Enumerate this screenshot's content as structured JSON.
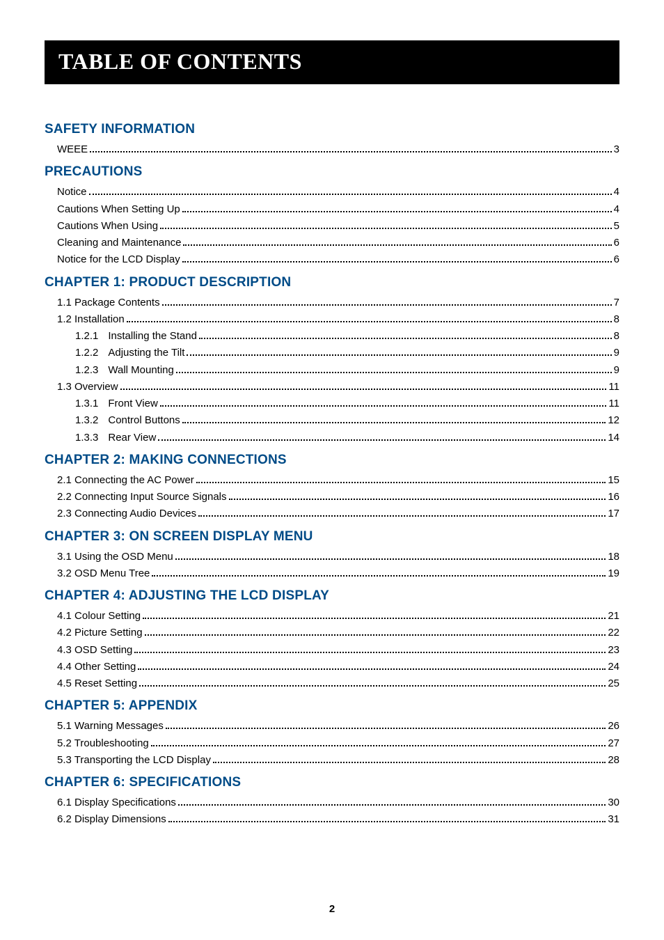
{
  "title_bar": "TABLE OF CONTENTS",
  "page_number": "2",
  "colors": {
    "heading": "#004b87",
    "bar_bg": "#000000",
    "bar_fg": "#ffffff",
    "text": "#000000",
    "page_bg": "#ffffff"
  },
  "fonts": {
    "title_family": "Georgia, 'Times New Roman', serif",
    "title_size_pt": 24,
    "heading_size_pt": 14,
    "body_family": "Arial, Helvetica, sans-serif",
    "body_size_pt": 11
  },
  "sections": [
    {
      "heading": "SAFETY INFORMATION",
      "entries": [
        {
          "level": 1,
          "num": "",
          "label": "WEEE",
          "page": "3"
        }
      ]
    },
    {
      "heading": "PRECAUTIONS",
      "entries": [
        {
          "level": 1,
          "num": "",
          "label": "Notice",
          "page": "4"
        },
        {
          "level": 1,
          "num": "",
          "label": "Cautions When Setting Up",
          "page": "4"
        },
        {
          "level": 1,
          "num": "",
          "label": "Cautions When Using",
          "page": "5"
        },
        {
          "level": 1,
          "num": "",
          "label": "Cleaning and Maintenance",
          "page": "6"
        },
        {
          "level": 1,
          "num": "",
          "label": "Notice for the LCD Display",
          "page": "6"
        }
      ]
    },
    {
      "heading": "CHAPTER 1: PRODUCT DESCRIPTION",
      "entries": [
        {
          "level": 1,
          "num": "",
          "label": "1.1 Package Contents",
          "page": "7"
        },
        {
          "level": 1,
          "num": "",
          "label": "1.2 Installation",
          "page": "8"
        },
        {
          "level": 2,
          "num": "1.2.1",
          "label": "Installing the Stand",
          "page": "8"
        },
        {
          "level": 2,
          "num": "1.2.2",
          "label": "Adjusting the Tilt",
          "page": "9"
        },
        {
          "level": 2,
          "num": "1.2.3",
          "label": "Wall Mounting",
          "page": "9"
        },
        {
          "level": 1,
          "num": "",
          "label": "1.3 Overview",
          "page": "11"
        },
        {
          "level": 2,
          "num": "1.3.1",
          "label": "Front View",
          "page": "11"
        },
        {
          "level": 2,
          "num": "1.3.2",
          "label": "Control Buttons",
          "page": "12"
        },
        {
          "level": 2,
          "num": "1.3.3",
          "label": "Rear View",
          "page": "14"
        }
      ]
    },
    {
      "heading": "CHAPTER 2: MAKING CONNECTIONS",
      "entries": [
        {
          "level": 1,
          "num": "",
          "label": "2.1 Connecting the AC Power",
          "page": "15"
        },
        {
          "level": 1,
          "num": "",
          "label": "2.2 Connecting Input Source Signals",
          "page": "16"
        },
        {
          "level": 1,
          "num": "",
          "label": "2.3 Connecting Audio Devices",
          "page": "17"
        }
      ]
    },
    {
      "heading": "CHAPTER 3: ON SCREEN DISPLAY MENU",
      "entries": [
        {
          "level": 1,
          "num": "",
          "label": "3.1 Using the OSD Menu",
          "page": "18"
        },
        {
          "level": 1,
          "num": "",
          "label": "3.2 OSD Menu Tree",
          "page": "19"
        }
      ]
    },
    {
      "heading": "CHAPTER 4: ADJUSTING THE LCD DISPLAY",
      "entries": [
        {
          "level": 1,
          "num": "",
          "label": "4.1 Colour Setting",
          "page": "21"
        },
        {
          "level": 1,
          "num": "",
          "label": "4.2 Picture Setting",
          "page": "22"
        },
        {
          "level": 1,
          "num": "",
          "label": "4.3 OSD Setting",
          "page": "23"
        },
        {
          "level": 1,
          "num": "",
          "label": "4.4 Other Setting",
          "page": "24"
        },
        {
          "level": 1,
          "num": "",
          "label": "4.5 Reset Setting",
          "page": "25"
        }
      ]
    },
    {
      "heading": "CHAPTER 5: APPENDIX",
      "entries": [
        {
          "level": 1,
          "num": "",
          "label": "5.1 Warning Messages",
          "page": "26"
        },
        {
          "level": 1,
          "num": "",
          "label": "5.2 Troubleshooting",
          "page": "27"
        },
        {
          "level": 1,
          "num": "",
          "label": "5.3 Transporting the LCD Display",
          "page": "28"
        }
      ]
    },
    {
      "heading": "CHAPTER 6: SPECIFICATIONS",
      "entries": [
        {
          "level": 1,
          "num": "",
          "label": "6.1 Display Specifications",
          "page": "30"
        },
        {
          "level": 1,
          "num": "",
          "label": "6.2 Display Dimensions",
          "page": "31"
        }
      ]
    }
  ]
}
